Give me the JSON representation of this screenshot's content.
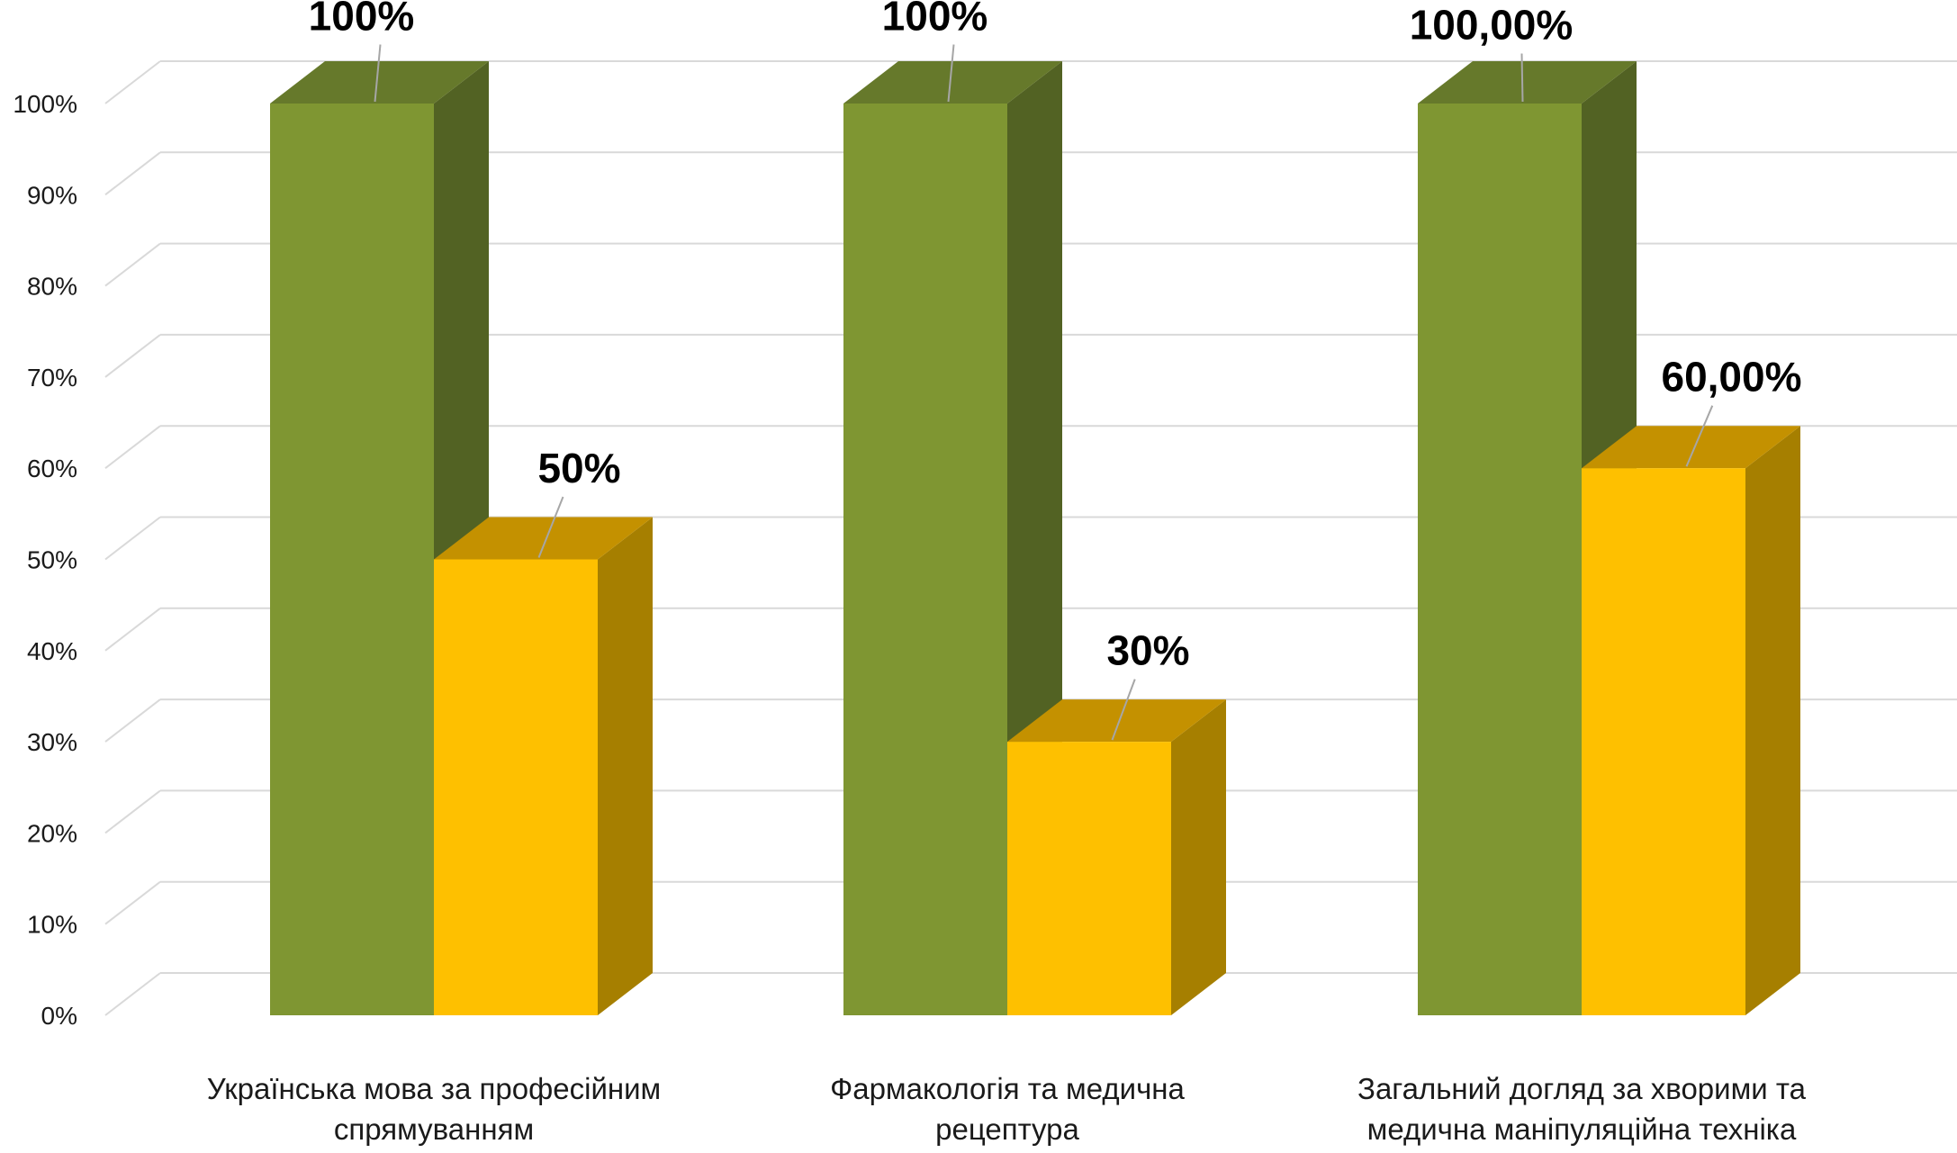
{
  "chart_data": {
    "type": "bar",
    "style": "3d-clustered-column",
    "categories": [
      [
        "Українська мова за професійним",
        "спрямуванням"
      ],
      [
        "Фармакологія та медична",
        "рецептура"
      ],
      [
        "Загальний догляд за хворими та",
        "медична маніпуляційна техніка"
      ]
    ],
    "series": [
      {
        "values": [
          1.0,
          1.0,
          1.0
        ],
        "labels": [
          "100%",
          "100%",
          "100,00%"
        ],
        "color": "#7F9632",
        "side_color": "#526223",
        "top_color": "#66792B"
      },
      {
        "values": [
          0.5,
          0.3,
          0.6
        ],
        "labels": [
          "50%",
          "30%",
          "60,00%"
        ],
        "color": "#FEC000",
        "side_color": "#A67F00",
        "top_color": "#C49100"
      }
    ],
    "y_ticks": [
      "0%",
      "10%",
      "20%",
      "30%",
      "40%",
      "50%",
      "60%",
      "70%",
      "80%",
      "90%",
      "100%"
    ],
    "ylim": [
      0,
      1
    ],
    "grid": true,
    "legend": "none"
  }
}
